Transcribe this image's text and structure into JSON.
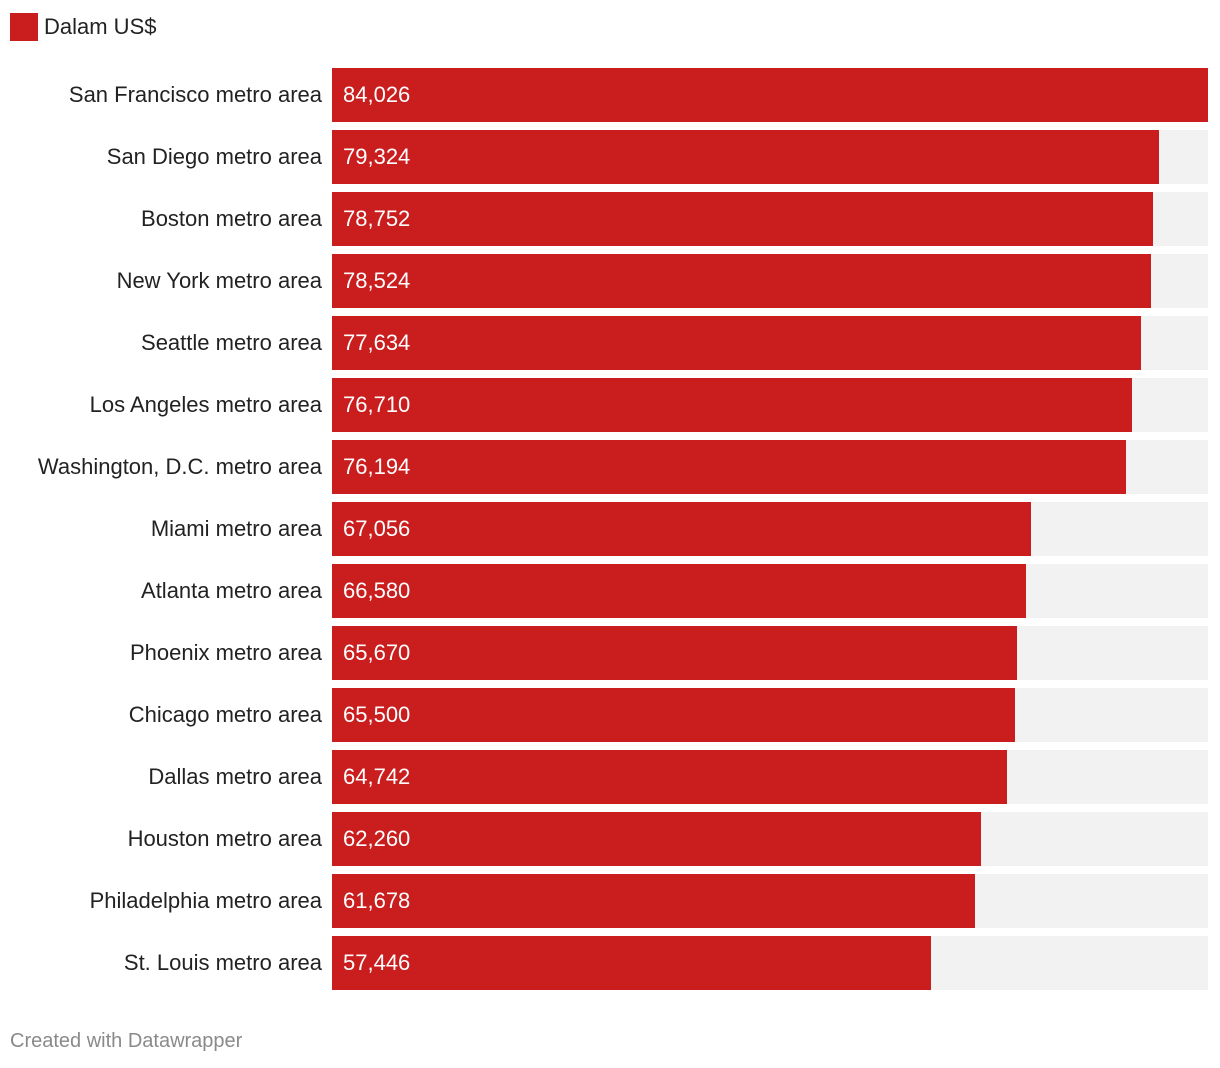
{
  "legend": {
    "label": "Dalam US$",
    "color": "#c91d1e"
  },
  "chart_data": {
    "type": "bar",
    "orientation": "horizontal",
    "title": "",
    "xlabel": "",
    "ylabel": "",
    "series": [
      {
        "name": "Dalam US$",
        "color": "#c91d1e"
      }
    ],
    "categories": [
      "San Francisco metro area",
      "San Diego metro area",
      "Boston metro area",
      "New York metro area",
      "Seattle metro area",
      "Los Angeles metro area",
      "Washington, D.C. metro area",
      "Miami metro area",
      "Atlanta metro area",
      "Phoenix metro area",
      "Chicago metro area",
      "Dallas metro area",
      "Houston metro area",
      "Philadelphia metro area",
      "St. Louis metro area"
    ],
    "values": [
      84026,
      79324,
      78752,
      78524,
      77634,
      76710,
      76194,
      67056,
      66580,
      65670,
      65500,
      64742,
      62260,
      61678,
      57446
    ],
    "value_labels": [
      "84,026",
      "79,324",
      "78,752",
      "78,524",
      "77,634",
      "76,710",
      "76,194",
      "67,056",
      "66,580",
      "65,670",
      "65,500",
      "64,742",
      "62,260",
      "61,678",
      "57,446"
    ],
    "xlim": [
      0,
      84026
    ],
    "background_track_color": "#f2f2f2"
  },
  "footer": {
    "credit": "Created with Datawrapper"
  }
}
